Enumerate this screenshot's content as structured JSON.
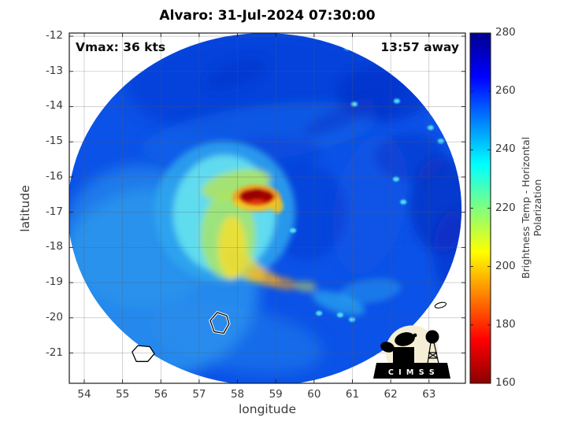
{
  "title": "Alvaro: 31-Jul-2024 07:30:00",
  "annotations": {
    "vmax": "Vmax: 36 kts",
    "eta": "13:57 away"
  },
  "axes": {
    "xlabel": "longitude",
    "ylabel": "latitude",
    "xlim": [
      53.61,
      63.95
    ],
    "ylim": [
      -21.86,
      -11.91
    ],
    "xticks": [
      54,
      55,
      56,
      57,
      58,
      59,
      60,
      61,
      62,
      63
    ],
    "yticks": [
      -12,
      -13,
      -14,
      -15,
      -16,
      -17,
      -18,
      -19,
      -20,
      -21
    ],
    "grid": true
  },
  "colorbar": {
    "label": "Brightness Temp - Horizontal Polarization",
    "min": 160,
    "max": 280,
    "ticks": [
      160,
      180,
      200,
      220,
      240,
      260,
      280
    ],
    "colormap": "jet-reversed",
    "stops": [
      [
        0,
        "#000090"
      ],
      [
        0.125,
        "#0000ff"
      ],
      [
        0.375,
        "#00ffff"
      ],
      [
        0.625,
        "#ffff00"
      ],
      [
        0.875,
        "#ff0000"
      ],
      [
        1,
        "#8b0000"
      ]
    ]
  },
  "logo": {
    "text": "CIMSS",
    "letters": "C I M S S"
  },
  "colors": {
    "base_field": "#0b52e8",
    "axes_line": "#1c1c1c",
    "grid_line": "rgba(90,90,90,0.45)",
    "logo_disc": "#f4eed6",
    "speckle": "#58f0f8"
  },
  "chart_data": {
    "type": "heatmap",
    "title": "Alvaro: 31-Jul-2024 07:30:00",
    "storm_name": "Alvaro",
    "timestamp": "31-Jul-2024 07:30:00",
    "vmax_kts": 36,
    "time_away": "13:57",
    "value_field": "Brightness Temp - Horizontal Polarization (K)",
    "value_range": [
      160,
      280
    ],
    "xlabel": "longitude",
    "ylabel": "latitude",
    "swath": {
      "center_lon": 58.71,
      "center_lat": -16.92,
      "radius_lon": 5.14,
      "radius_lat": 5.01
    },
    "storm_center": {
      "lon": 58.5,
      "lat": -16.6,
      "min_temp_K": 165
    },
    "ambient_temp_K": 255,
    "blob_fields": [
      "lon",
      "lat",
      "rx_deg",
      "ry_deg",
      "rot_deg",
      "color",
      "opacity"
    ],
    "heat_blobs": {
      "blur9": [
        [
          58.79,
          -13.41,
          3.7,
          1.57,
          0,
          "#0a35cf",
          0.55
        ],
        [
          55.91,
          -19.02,
          2.67,
          2.69,
          0,
          "#2f9bed",
          0.75
        ],
        [
          55.5,
          -17.67,
          2.06,
          2.02,
          0,
          "#2f9bed",
          0.55
        ],
        [
          57.97,
          -20.59,
          2.3,
          0.9,
          10,
          "#2a90ea",
          0.4
        ]
      ],
      "blur6": [
        [
          58.58,
          -14.76,
          3.1,
          0.79,
          -8,
          "#1565e9",
          0.6
        ],
        [
          61.46,
          -16.78,
          0.92,
          2.02,
          12,
          "#1157e6",
          0.5
        ],
        [
          61.8,
          -13.63,
          1.23,
          0.79,
          0,
          "#0b2ec3",
          0.5
        ],
        [
          62.49,
          -15.43,
          0.92,
          0.67,
          0,
          "#0b2ec3",
          0.45
        ],
        [
          63.31,
          -16.78,
          0.82,
          1.35,
          0,
          "#0a24b4",
          0.5
        ],
        [
          63.62,
          -18.12,
          0.51,
          1.12,
          0,
          "#0a28bd",
          0.45
        ],
        [
          57.97,
          -13.07,
          0.82,
          0.34,
          -20,
          "#0a32c8",
          0.5
        ],
        [
          60.64,
          -14.31,
          1.03,
          0.27,
          -25,
          "#0a32c8",
          0.45
        ],
        [
          59.82,
          -17.0,
          1.03,
          1.35,
          0,
          "#0936d0",
          0.5
        ],
        [
          58.58,
          -15.43,
          1.64,
          0.56,
          -5,
          "#0a3ad2",
          0.45
        ]
      ],
      "blur4": [
        [
          57.66,
          -17.0,
          1.85,
          2.02,
          0,
          "#2fa6ee",
          0.85
        ],
        [
          57.66,
          -17.05,
          1.34,
          1.68,
          0,
          "#66e2f0",
          0.9
        ],
        [
          57.76,
          -17.67,
          0.72,
          1.23,
          0,
          "#a8e46a",
          0.85
        ],
        [
          57.86,
          -18.01,
          0.37,
          0.9,
          0,
          "#f0df33",
          0.9
        ],
        [
          57.97,
          -16.22,
          0.92,
          0.4,
          -12,
          "#b5e455",
          0.8
        ],
        [
          58.17,
          -18.53,
          0.62,
          0.31,
          35,
          "#e4da3c",
          0.8
        ],
        [
          58.69,
          -18.84,
          0.45,
          0.22,
          20,
          "#f0b028",
          0.75
        ],
        [
          59.2,
          -19.02,
          0.37,
          0.18,
          10,
          "#ef9a20",
          0.6
        ],
        [
          59.78,
          -19.11,
          0.29,
          0.16,
          5,
          "#cfe04a",
          0.5
        ],
        [
          60.64,
          -19.58,
          0.72,
          0.27,
          18,
          "#37c9f0",
          0.5
        ],
        [
          61.46,
          -19.24,
          0.82,
          0.34,
          -8,
          "#2aa8ee",
          0.45
        ]
      ],
      "blur2": [
        [
          58.5,
          -16.6,
          0.64,
          0.38,
          0,
          "#f5a01e",
          0.9
        ],
        [
          58.45,
          -16.75,
          0.55,
          0.18,
          0,
          "#efd22a",
          0.85
        ],
        [
          58.5,
          -16.57,
          0.47,
          0.25,
          0,
          "#e03010",
          0.95
        ],
        [
          58.28,
          -16.53,
          0.21,
          0.16,
          0,
          "#a00000",
          1
        ],
        [
          58.52,
          -16.49,
          0.21,
          0.16,
          0,
          "#990000",
          1
        ],
        [
          58.75,
          -16.55,
          0.18,
          0.15,
          0,
          "#a40000",
          1
        ],
        [
          59.04,
          -16.82,
          0.16,
          0.22,
          0,
          "#f2c51f",
          0.85
        ]
      ]
    },
    "speckles": [
      [
        56.49,
        -12.24
      ],
      [
        60.87,
        -12.33
      ],
      [
        61.05,
        -13.93
      ],
      [
        62.16,
        -13.84
      ],
      [
        63.04,
        -14.6
      ],
      [
        63.31,
        -14.98
      ],
      [
        62.14,
        -16.06
      ],
      [
        62.33,
        -16.71
      ],
      [
        59.45,
        -17.52
      ],
      [
        60.13,
        -19.87
      ],
      [
        60.68,
        -19.92
      ],
      [
        60.99,
        -20.05
      ]
    ],
    "islands": {
      "reunion": [
        [
          55.25,
          -20.97
        ],
        [
          55.4,
          -20.79
        ],
        [
          55.71,
          -20.82
        ],
        [
          55.83,
          -21.02
        ],
        [
          55.66,
          -21.24
        ],
        [
          55.36,
          -21.24
        ]
      ],
      "mauritius": [
        [
          57.47,
          -19.85
        ],
        [
          57.72,
          -19.94
        ],
        [
          57.78,
          -20.17
        ],
        [
          57.64,
          -20.44
        ],
        [
          57.39,
          -20.39
        ],
        [
          57.29,
          -20.08
        ]
      ],
      "rodrigues_ellipse": [
        63.3,
        -19.64,
        0.15,
        0.07,
        -15
      ]
    }
  }
}
